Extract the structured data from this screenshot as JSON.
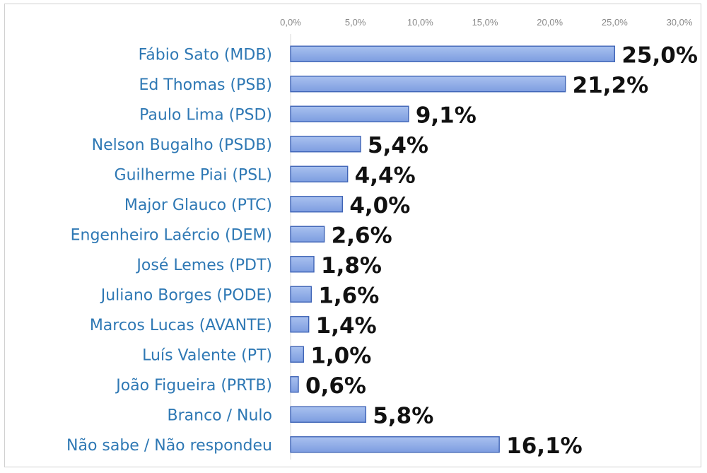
{
  "chart_data": {
    "type": "bar",
    "orientation": "horizontal",
    "categories": [
      "Fábio Sato (MDB)",
      "Ed Thomas (PSB)",
      "Paulo Lima (PSD)",
      "Nelson Bugalho (PSDB)",
      "Guilherme Piai (PSL)",
      "Major Glauco (PTC)",
      "Engenheiro Laércio (DEM)",
      "José Lemes (PDT)",
      "Juliano Borges (PODE)",
      "Marcos Lucas (AVANTE)",
      "Luís Valente (PT)",
      "João Figueira (PRTB)",
      "Branco / Nulo",
      "Não sabe / Não respondeu"
    ],
    "values": [
      25.0,
      21.2,
      9.1,
      5.4,
      4.4,
      4.0,
      2.6,
      1.8,
      1.6,
      1.4,
      1.0,
      0.6,
      5.8,
      16.1
    ],
    "data_labels": [
      "25,0%",
      "21,2%",
      "9,1%",
      "5,4%",
      "4,4%",
      "4,0%",
      "2,6%",
      "1,8%",
      "1,6%",
      "1,4%",
      "1,0%",
      "0,6%",
      "5,8%",
      "16,1%"
    ],
    "xlim": [
      0,
      30
    ],
    "ticks": [
      0,
      5,
      10,
      15,
      20,
      25,
      30
    ],
    "tick_labels": [
      "0,0%",
      "5,0%",
      "10,0%",
      "15,0%",
      "20,0%",
      "25,0%",
      "30,0%"
    ],
    "axis_position": "top",
    "grid": false,
    "legend": "none",
    "title": "",
    "xlabel": "",
    "ylabel": "",
    "colors": {
      "bar_fill_top": "#a9c1ef",
      "bar_fill_bottom": "#7d9de0",
      "bar_stroke": "#3f64b6",
      "category_text": "#2e78b4",
      "tick_text": "#8a8a8a",
      "axis_line": "#d9d9d9"
    }
  }
}
